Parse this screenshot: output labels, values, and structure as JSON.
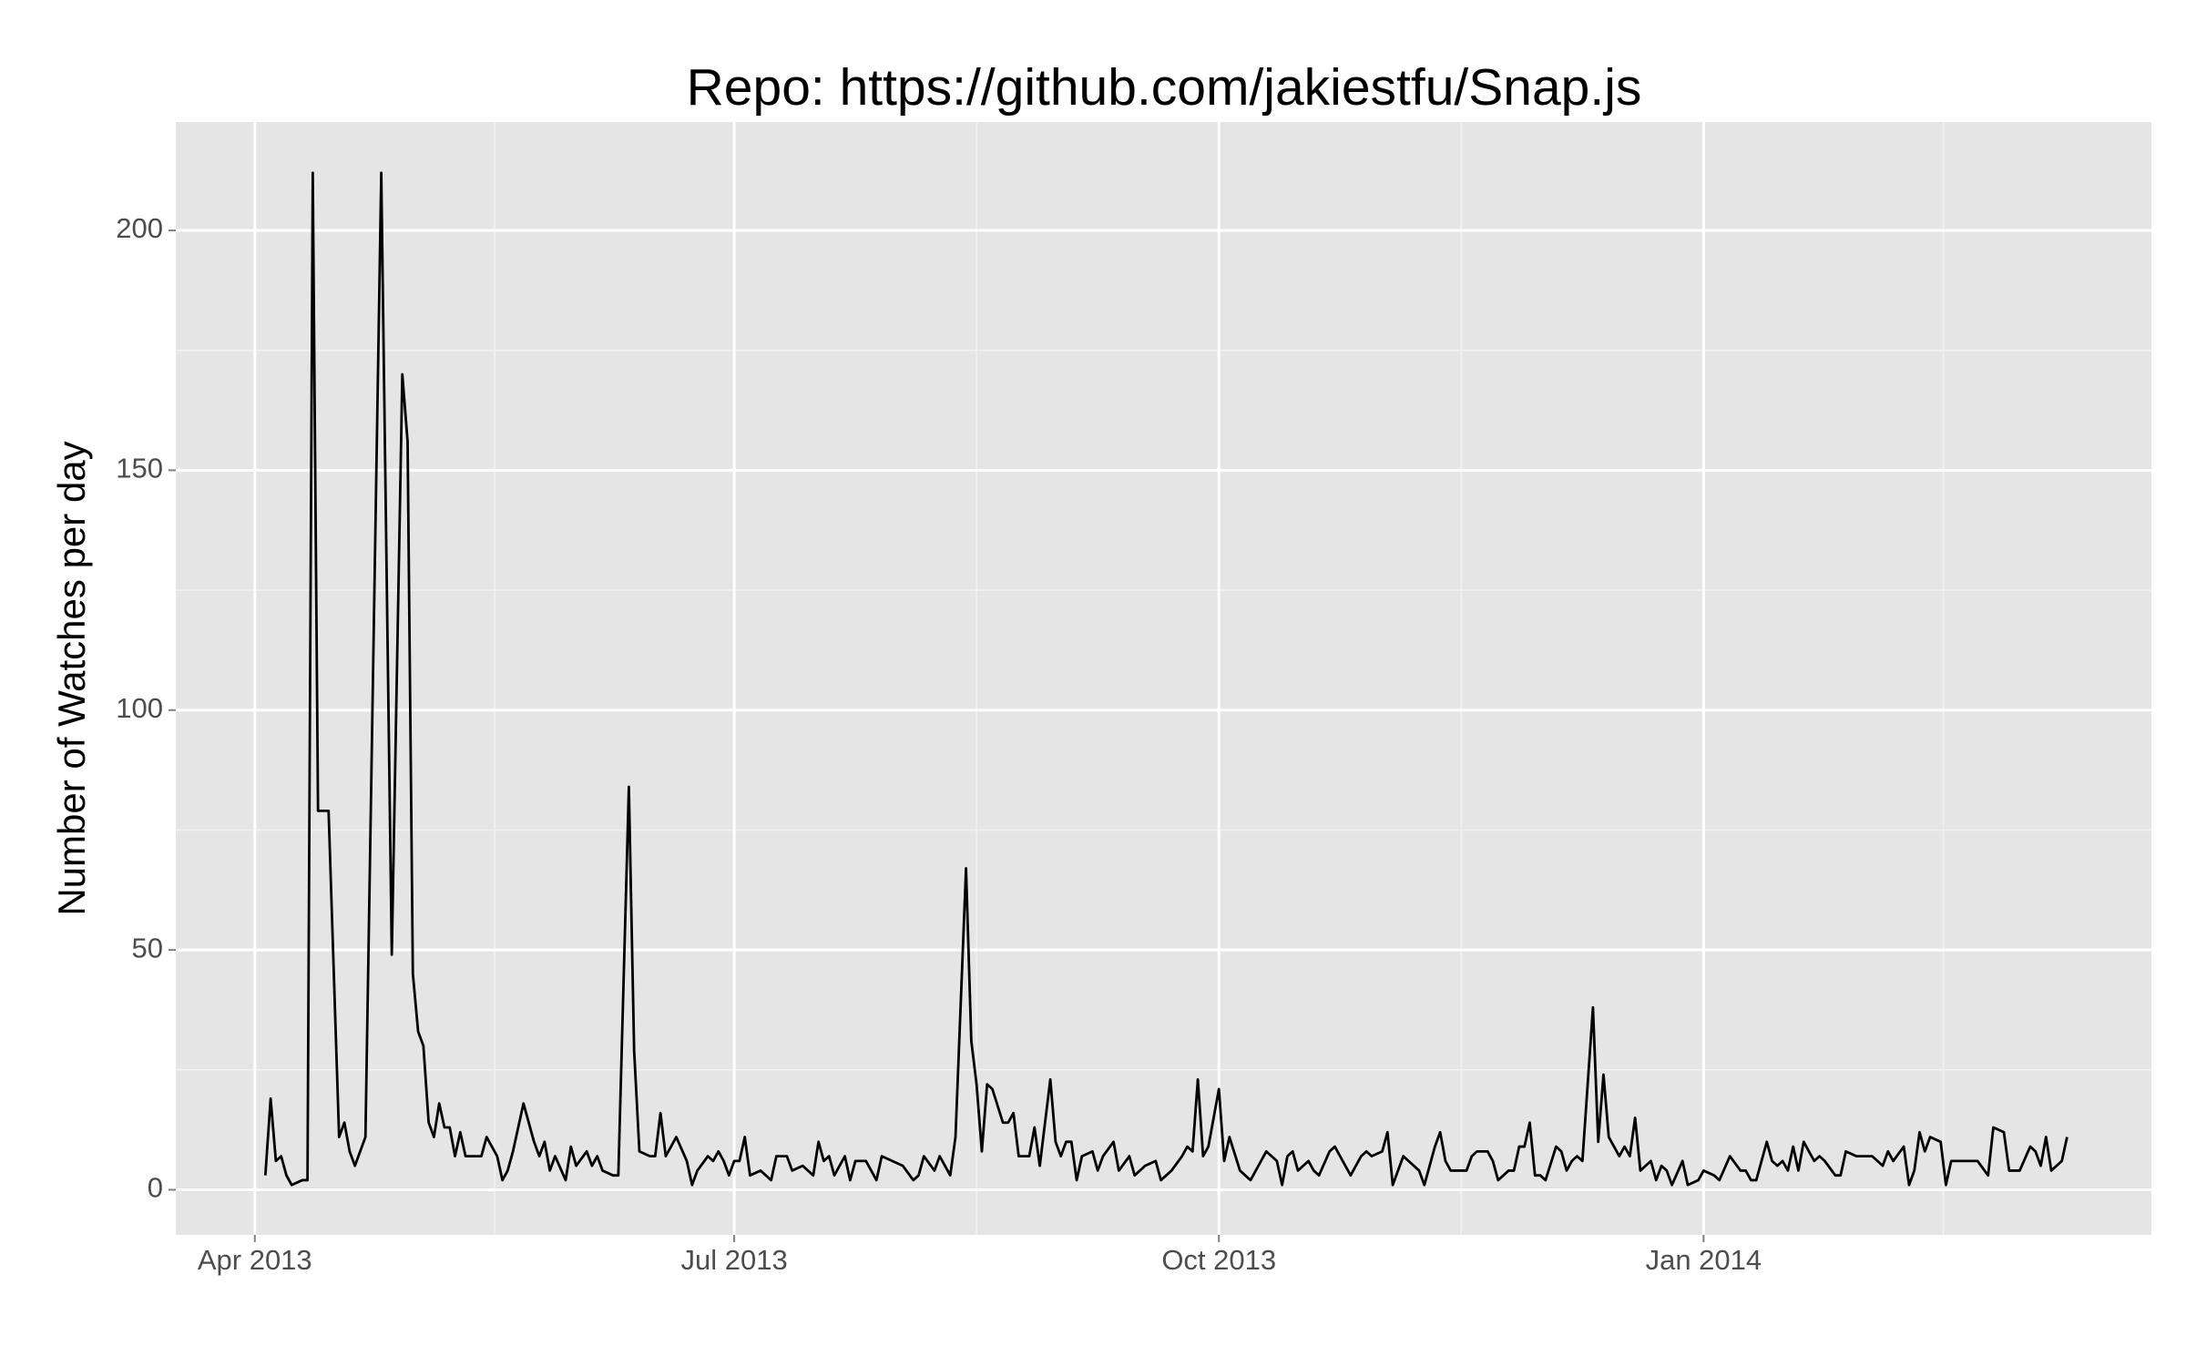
{
  "chart_data": {
    "type": "line",
    "title": "Repo: https://github.com/jakiestfu/Snap.js",
    "y_label": "Number of Watches per day",
    "color": "#000000",
    "grid": true,
    "xlim": [
      -15,
      360
    ],
    "xticks": [
      {
        "value": 0,
        "label": "Apr 2013"
      },
      {
        "value": 91,
        "label": "Jul 2013"
      },
      {
        "value": 183,
        "label": "Oct 2013"
      },
      {
        "value": 275,
        "label": "Jan 2014"
      }
    ],
    "xminor": [
      45.5,
      137,
      229,
      320.5
    ],
    "ylim": [
      -9.4,
      222.6
    ],
    "yticks": [
      0,
      50,
      100,
      150,
      200
    ],
    "yminor": [
      25,
      75,
      125,
      175
    ],
    "x": [
      2,
      3,
      4,
      5,
      6,
      7,
      9,
      10,
      11,
      12,
      14,
      16,
      17,
      18,
      19,
      21,
      24,
      26,
      28,
      29,
      30,
      31,
      32,
      33,
      34,
      35,
      36,
      37,
      38,
      39,
      40,
      43,
      44,
      46,
      47,
      48,
      49,
      51,
      53,
      54,
      55,
      56,
      57,
      59,
      60,
      61,
      63,
      64,
      65,
      66,
      68,
      69,
      71,
      72,
      73,
      75,
      76,
      77,
      78,
      80,
      82,
      83,
      84,
      86,
      87,
      88,
      89,
      90,
      91,
      92,
      93,
      94,
      96,
      98,
      99,
      101,
      102,
      104,
      106,
      107,
      108,
      109,
      110,
      112,
      113,
      114,
      116,
      118,
      119,
      123,
      125,
      126,
      127,
      129,
      130,
      132,
      133,
      135,
      136,
      137,
      138,
      139,
      140,
      142,
      143,
      144,
      145,
      147,
      148,
      149,
      151,
      152,
      153,
      154,
      155,
      156,
      157,
      159,
      160,
      161,
      163,
      164,
      166,
      167,
      169,
      171,
      172,
      174,
      176,
      177,
      178,
      179,
      180,
      181,
      183,
      184,
      185,
      187,
      188,
      189,
      191,
      192,
      194,
      195,
      196,
      197,
      198,
      200,
      201,
      202,
      204,
      205,
      206,
      208,
      210,
      211,
      212,
      214,
      215,
      216,
      218,
      219,
      221,
      222,
      224,
      225,
      226,
      227,
      230,
      231,
      232,
      234,
      235,
      236,
      238,
      239,
      240,
      241,
      242,
      243,
      244,
      245,
      247,
      248,
      249,
      250,
      251,
      252,
      254,
      255,
      256,
      257,
      259,
      260,
      261,
      262,
      263,
      265,
      266,
      267,
      268,
      269,
      271,
      272,
      274,
      275,
      277,
      278,
      280,
      282,
      283,
      284,
      285,
      287,
      288,
      289,
      290,
      291,
      292,
      293,
      294,
      296,
      297,
      298,
      300,
      301,
      302,
      304,
      307,
      309,
      310,
      311,
      313,
      314,
      315,
      316,
      317,
      318,
      320,
      321,
      322,
      323,
      327,
      329,
      330,
      332,
      333,
      335,
      337,
      338,
      339,
      340,
      341,
      343,
      344
    ],
    "values": [
      3,
      19,
      6,
      7,
      3,
      1,
      2,
      2,
      212,
      79,
      79,
      11,
      14,
      8,
      5,
      11,
      212,
      49,
      170,
      156,
      45,
      33,
      30,
      14,
      11,
      18,
      13,
      13,
      7,
      12,
      7,
      7,
      11,
      7,
      2,
      4,
      8,
      18,
      10,
      7,
      10,
      4,
      7,
      2,
      9,
      5,
      8,
      5,
      7,
      4,
      3,
      3,
      84,
      29,
      8,
      7,
      7,
      16,
      7,
      11,
      6,
      1,
      4,
      7,
      6,
      8,
      6,
      3,
      6,
      6,
      11,
      3,
      4,
      2,
      7,
      7,
      4,
      5,
      3,
      10,
      6,
      7,
      3,
      7,
      2,
      6,
      6,
      2,
      7,
      5,
      2,
      3,
      7,
      4,
      7,
      3,
      11,
      67,
      31,
      22,
      8,
      22,
      21,
      14,
      14,
      16,
      7,
      7,
      13,
      5,
      23,
      10,
      7,
      10,
      10,
      2,
      7,
      8,
      4,
      7,
      10,
      4,
      7,
      3,
      5,
      6,
      2,
      4,
      7,
      9,
      8,
      23,
      7,
      9,
      21,
      6,
      11,
      4,
      3,
      2,
      6,
      8,
      6,
      1,
      7,
      8,
      4,
      6,
      4,
      3,
      8,
      9,
      7,
      3,
      7,
      8,
      7,
      8,
      12,
      1,
      7,
      6,
      4,
      1,
      9,
      12,
      6,
      4,
      4,
      7,
      8,
      8,
      6,
      2,
      4,
      4,
      9,
      9,
      14,
      3,
      3,
      2,
      9,
      8,
      4,
      6,
      7,
      6,
      38,
      10,
      24,
      11,
      7,
      9,
      7,
      15,
      4,
      6,
      2,
      5,
      4,
      1,
      6,
      1,
      2,
      4,
      3,
      2,
      7,
      4,
      4,
      2,
      2,
      10,
      6,
      5,
      6,
      4,
      9,
      4,
      10,
      6,
      7,
      6,
      3,
      3,
      8,
      7,
      7,
      5,
      8,
      6,
      9,
      1,
      4,
      12,
      8,
      11,
      10,
      1,
      6,
      6,
      6,
      3,
      13,
      12,
      4,
      4,
      9,
      8,
      5,
      11,
      4,
      6,
      11
    ]
  }
}
